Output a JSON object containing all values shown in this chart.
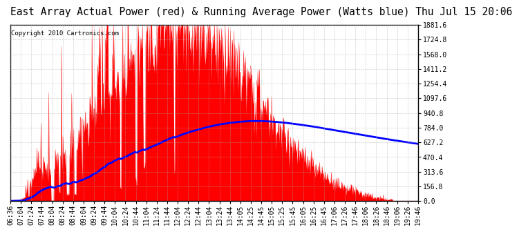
{
  "title": "East Array Actual Power (red) & Running Average Power (Watts blue) Thu Jul 15 20:06",
  "copyright": "Copyright 2010 Cartronics.com",
  "ymax": 1881.6,
  "ymin": 0.0,
  "yticks": [
    0.0,
    156.8,
    313.6,
    470.4,
    627.2,
    784.0,
    940.8,
    1097.6,
    1254.4,
    1411.2,
    1568.0,
    1724.8,
    1881.6
  ],
  "ytick_labels": [
    "0.0",
    "156.8",
    "313.6",
    "470.4",
    "627.2",
    "784.0",
    "940.8",
    "1097.6",
    "1254.4",
    "1411.2",
    "1568.0",
    "1724.8",
    "1881.6"
  ],
  "xtick_labels": [
    "06:36",
    "07:04",
    "07:24",
    "07:44",
    "08:04",
    "08:24",
    "08:44",
    "09:04",
    "09:24",
    "09:44",
    "10:04",
    "10:24",
    "10:44",
    "11:04",
    "11:24",
    "11:44",
    "12:04",
    "12:24",
    "12:44",
    "13:04",
    "13:24",
    "13:44",
    "14:05",
    "14:25",
    "14:45",
    "15:05",
    "15:25",
    "15:45",
    "16:05",
    "16:25",
    "16:45",
    "17:06",
    "17:26",
    "17:46",
    "18:06",
    "18:26",
    "18:46",
    "19:06",
    "19:26",
    "19:46"
  ],
  "background_color": "#ffffff",
  "actual_color": "#ff0000",
  "avg_color": "#0000ff",
  "grid_color": "#aaaaaa",
  "title_fontsize": 10.5,
  "tick_fontsize": 7.0,
  "copyright_fontsize": 6.5
}
